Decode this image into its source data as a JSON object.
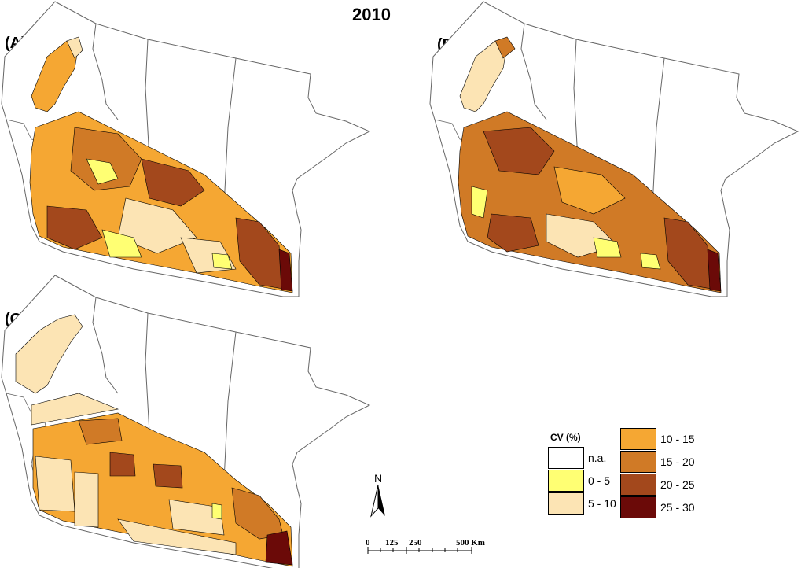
{
  "title": "2010",
  "panels": [
    {
      "label": "(A)"
    },
    {
      "label": "(B)"
    },
    {
      "label": "(C)"
    }
  ],
  "legend": {
    "title": "CV (%)",
    "classes": [
      {
        "label": "n.a.",
        "color": "#ffffff"
      },
      {
        "label": "0 - 5",
        "color": "#ffff73"
      },
      {
        "label": "5 - 10",
        "color": "#fce4b4"
      },
      {
        "label": "10 - 15",
        "color": "#f5a733"
      },
      {
        "label": "15 - 20",
        "color": "#d07a26"
      },
      {
        "label": "20 - 25",
        "color": "#a3481c"
      },
      {
        "label": "25 - 30",
        "color": "#6b0a08"
      }
    ]
  },
  "north_arrow": {
    "label": "N"
  },
  "scale_bar": {
    "labels": [
      "0",
      "125",
      "250",
      "500 Km"
    ]
  }
}
